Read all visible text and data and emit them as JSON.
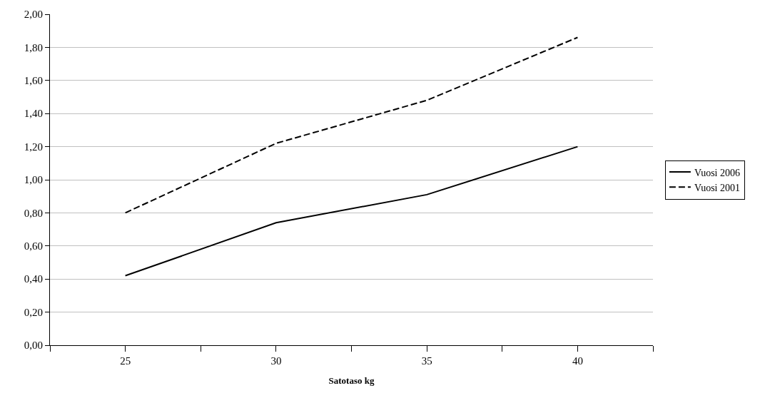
{
  "chart_data": {
    "type": "line",
    "xlabel": "Satotaso kg",
    "x": [
      25,
      30,
      35,
      40
    ],
    "series": [
      {
        "name": "Vuosi 2006",
        "color": "#000000",
        "values": [
          0.42,
          0.74,
          0.91,
          1.2
        ],
        "line_style": "solid"
      },
      {
        "name": "Vuosi 2001",
        "color": "#000000",
        "values": [
          0.8,
          1.22,
          1.48,
          1.86
        ],
        "line_style": "dashed"
      }
    ],
    "xlim": [
      22.5,
      42.5
    ],
    "xticks": [
      {
        "value": 22.5,
        "label": null
      },
      25,
      {
        "value": 27.5,
        "label": null
      },
      30,
      {
        "value": 32.5,
        "label": null
      },
      35,
      {
        "value": 37.5,
        "label": null
      },
      40,
      {
        "value": 42.5,
        "label": null
      }
    ],
    "ylim": [
      0,
      2
    ],
    "yticks": [
      {
        "value": 0,
        "label": "0,00"
      },
      {
        "value": 0.2,
        "label": "0,20"
      },
      {
        "value": 0.4,
        "label": "0,40"
      },
      {
        "value": 0.6,
        "label": "0,60"
      },
      {
        "value": 0.8,
        "label": "0,80"
      },
      {
        "value": 1.0,
        "label": "1,00"
      },
      {
        "value": 1.2,
        "label": "1,20"
      },
      {
        "value": 1.4,
        "label": "1,40"
      },
      {
        "value": 1.6,
        "label": "1,60"
      },
      {
        "value": 1.8,
        "label": "1,80"
      },
      {
        "value": 2.0,
        "label": "2,00"
      }
    ],
    "grid": "y",
    "legend": "right",
    "marker": "none"
  }
}
